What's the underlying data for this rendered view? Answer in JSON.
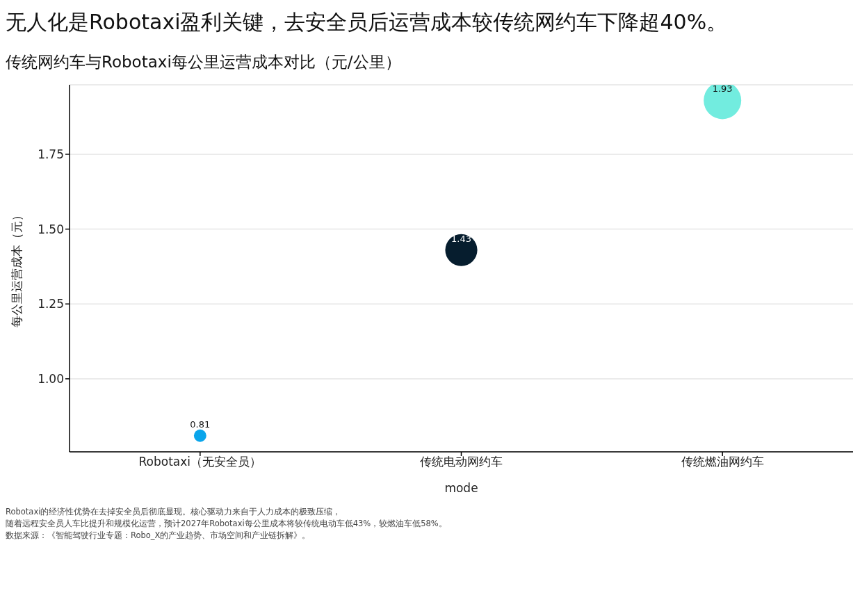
{
  "chart_data": {
    "type": "bubble",
    "title": "无人化是Robotaxi盈利关键，去安全员后运营成本较传统网约车下降超40%。",
    "subtitle": "传统网约车与Robotaxi每公里运营成本对比（元/公里）",
    "xlabel": "mode",
    "ylabel": "每公里运营成本（元）",
    "categories": [
      "Robotaxi（无安全员）",
      "传统电动网约车",
      "传统燃油网约车"
    ],
    "values": [
      0.81,
      1.43,
      1.93
    ],
    "sizes": [
      0.11,
      0.73,
      1
    ],
    "colors": [
      "#0aa5eb",
      "#061d2e",
      "#72ecdf"
    ],
    "ylim": [
      0.756,
      1.982
    ],
    "yticks": [
      {
        "value": 1.0,
        "label": "1.00"
      },
      1.25,
      {
        "value": 1.5,
        "label": "1.50"
      },
      1.75
    ],
    "grid": "y",
    "data_labels": true,
    "annotations": [
      "Robotaxi的经济性优势在去掉安全员后彻底显现。核心驱动力来自于人力成本的极致压缩，",
      "随着远程安全员人车比提升和规模化运营，预计2027年Robotaxi每公里成本将较传统电动车低43%，较燃油车低58%。",
      "数据来源：《智能驾驶行业专题：Robo_X的产业趋势、市场空间和产业链拆解》。"
    ]
  }
}
